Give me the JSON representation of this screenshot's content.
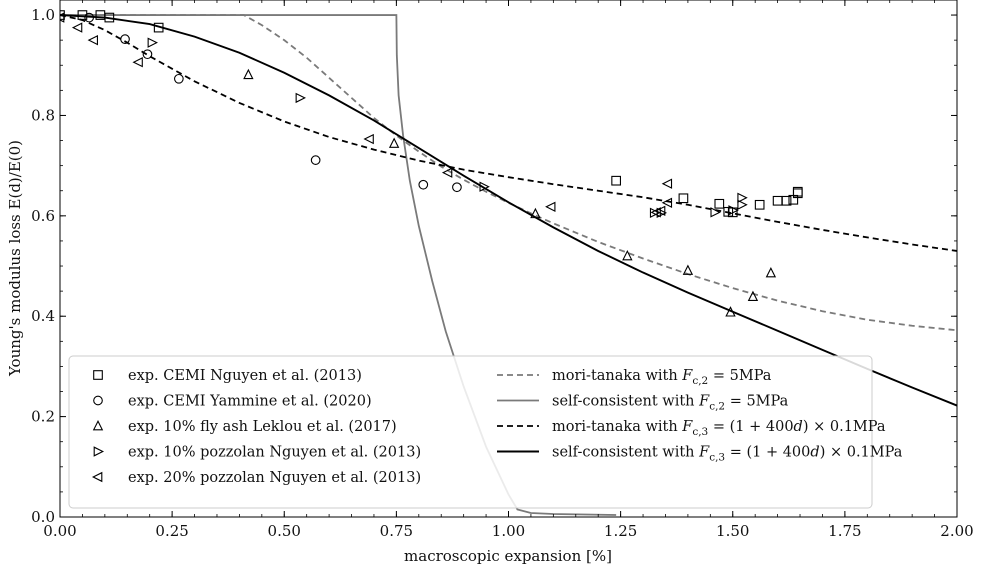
{
  "chart_data": {
    "type": "scatter",
    "xlabel": "macroscopic expansion [%]",
    "ylabel": "Young's modulus loss E(d)/E(0)",
    "xlim": [
      0.0,
      2.0
    ],
    "ylim": [
      0.0,
      1.03
    ],
    "x_ticks": [
      "0.00",
      "0.25",
      "0.50",
      "0.75",
      "1.00",
      "1.25",
      "1.50",
      "1.75",
      "2.00"
    ],
    "x_tick_values": [
      0.0,
      0.25,
      0.5,
      0.75,
      1.0,
      1.25,
      1.5,
      1.75,
      2.0
    ],
    "y_ticks": [
      "0.0",
      "0.2",
      "0.4",
      "0.6",
      "0.8",
      "1.0"
    ],
    "y_tick_values": [
      0.0,
      0.2,
      0.4,
      0.6,
      0.8,
      1.0
    ],
    "grid": false,
    "legend_placement": "bottom",
    "series": [
      {
        "name": "exp. CEMI Nguyen et al. (2013)",
        "kind": "marker",
        "marker": "square",
        "color": "#000000",
        "points": [
          [
            0.0,
            1.0
          ],
          [
            0.05,
            1.0
          ],
          [
            0.09,
            1.0
          ],
          [
            0.11,
            0.995
          ],
          [
            0.22,
            0.975
          ],
          [
            1.24,
            0.67
          ],
          [
            1.39,
            0.635
          ],
          [
            1.47,
            0.624
          ],
          [
            1.49,
            0.608
          ],
          [
            1.5,
            0.607
          ],
          [
            1.56,
            0.622
          ],
          [
            1.6,
            0.63
          ],
          [
            1.62,
            0.63
          ],
          [
            1.635,
            0.632
          ],
          [
            1.645,
            0.645
          ],
          [
            1.645,
            0.648
          ]
        ]
      },
      {
        "name": "exp. CEMI Yammine et al. (2020)",
        "kind": "marker",
        "marker": "circle",
        "color": "#000000",
        "points": [
          [
            0.065,
            0.995
          ],
          [
            0.145,
            0.952
          ],
          [
            0.195,
            0.922
          ],
          [
            0.265,
            0.873
          ],
          [
            0.57,
            0.711
          ],
          [
            0.81,
            0.662
          ],
          [
            0.885,
            0.657
          ]
        ]
      },
      {
        "name": "exp. 10% fly ash Leklou et al. (2017)",
        "kind": "marker",
        "marker": "triangle-up",
        "color": "#000000",
        "points": [
          [
            0.42,
            0.881
          ],
          [
            0.745,
            0.744
          ],
          [
            1.06,
            0.604
          ],
          [
            1.265,
            0.52
          ],
          [
            1.4,
            0.491
          ],
          [
            1.495,
            0.408
          ],
          [
            1.545,
            0.439
          ],
          [
            1.585,
            0.486
          ]
        ]
      },
      {
        "name": "exp. 10% pozzolan Nguyen et al. (2013)",
        "kind": "marker",
        "marker": "triangle-right",
        "color": "#000000",
        "points": [
          [
            0.205,
            0.945
          ],
          [
            0.535,
            0.835
          ],
          [
            0.945,
            0.658
          ],
          [
            1.325,
            0.606
          ],
          [
            1.34,
            0.606
          ],
          [
            1.46,
            0.607
          ],
          [
            1.5,
            0.611
          ],
          [
            1.52,
            0.622
          ],
          [
            1.52,
            0.636
          ]
        ]
      },
      {
        "name": "exp. 20% pozzolan Nguyen et al. (2013)",
        "kind": "marker",
        "marker": "triangle-left",
        "color": "#000000",
        "points": [
          [
            0.0,
            0.995
          ],
          [
            0.04,
            0.975
          ],
          [
            0.075,
            0.95
          ],
          [
            0.175,
            0.906
          ],
          [
            0.69,
            0.753
          ],
          [
            0.865,
            0.686
          ],
          [
            1.095,
            0.618
          ],
          [
            1.33,
            0.607
          ],
          [
            1.34,
            0.61
          ],
          [
            1.355,
            0.626
          ],
          [
            1.355,
            0.664
          ]
        ]
      },
      {
        "name": "mori-tanaka with ",
        "name_math": "F",
        "name_sub": "c,2",
        "name_rest": " = 5MPa",
        "kind": "line",
        "dash": "6,4",
        "color": "#7a7a7a",
        "width": 1.8,
        "points": [
          [
            0.0,
            1.0
          ],
          [
            0.41,
            1.0
          ],
          [
            0.45,
            0.98
          ],
          [
            0.5,
            0.95
          ],
          [
            0.55,
            0.915
          ],
          [
            0.6,
            0.875
          ],
          [
            0.65,
            0.835
          ],
          [
            0.7,
            0.795
          ],
          [
            0.75,
            0.76
          ],
          [
            0.8,
            0.728
          ],
          [
            0.85,
            0.698
          ],
          [
            0.9,
            0.672
          ],
          [
            0.95,
            0.648
          ],
          [
            1.0,
            0.626
          ],
          [
            1.05,
            0.605
          ],
          [
            1.1,
            0.585
          ],
          [
            1.2,
            0.548
          ],
          [
            1.3,
            0.515
          ],
          [
            1.4,
            0.484
          ],
          [
            1.5,
            0.456
          ],
          [
            1.6,
            0.431
          ],
          [
            1.7,
            0.41
          ],
          [
            1.8,
            0.393
          ],
          [
            1.9,
            0.381
          ],
          [
            2.0,
            0.372
          ]
        ]
      },
      {
        "name": "self-consistent with ",
        "name_math": "F",
        "name_sub": "c,2",
        "name_rest": " = 5MPa",
        "kind": "line",
        "dash": "",
        "color": "#7a7a7a",
        "width": 1.8,
        "points": [
          [
            0.0,
            1.0
          ],
          [
            0.75,
            1.0
          ],
          [
            0.751,
            0.92
          ],
          [
            0.755,
            0.84
          ],
          [
            0.765,
            0.76
          ],
          [
            0.78,
            0.67
          ],
          [
            0.8,
            0.58
          ],
          [
            0.83,
            0.47
          ],
          [
            0.86,
            0.37
          ],
          [
            0.9,
            0.26
          ],
          [
            0.95,
            0.14
          ],
          [
            1.0,
            0.045
          ],
          [
            1.02,
            0.015
          ],
          [
            1.05,
            0.008
          ],
          [
            1.1,
            0.006
          ],
          [
            1.24,
            0.004
          ]
        ]
      },
      {
        "name": "mori-tanaka with ",
        "name_math": "F",
        "name_sub": "c,3",
        "name_rest": " = (1 + 400",
        "name_math2": "d",
        "name_rest2": ") × 0.1MPa",
        "kind": "line",
        "dash": "6,4",
        "color": "#000000",
        "width": 1.8,
        "points": [
          [
            0.0,
            1.0
          ],
          [
            0.05,
            0.99
          ],
          [
            0.1,
            0.97
          ],
          [
            0.15,
            0.945
          ],
          [
            0.2,
            0.918
          ],
          [
            0.3,
            0.868
          ],
          [
            0.4,
            0.825
          ],
          [
            0.5,
            0.788
          ],
          [
            0.6,
            0.757
          ],
          [
            0.7,
            0.732
          ],
          [
            0.8,
            0.71
          ],
          [
            0.9,
            0.692
          ],
          [
            1.0,
            0.677
          ],
          [
            1.1,
            0.663
          ],
          [
            1.2,
            0.65
          ],
          [
            1.3,
            0.637
          ],
          [
            1.4,
            0.622
          ],
          [
            1.5,
            0.605
          ],
          [
            1.6,
            0.588
          ],
          [
            1.7,
            0.572
          ],
          [
            1.8,
            0.557
          ],
          [
            1.9,
            0.543
          ],
          [
            2.0,
            0.53
          ]
        ]
      },
      {
        "name": "self-consistent with ",
        "name_math": "F",
        "name_sub": "c,3",
        "name_rest": " = (1 + 400",
        "name_math2": "d",
        "name_rest2": ") × 0.1MPa",
        "kind": "line",
        "dash": "",
        "color": "#000000",
        "width": 1.9,
        "points": [
          [
            0.0,
            1.0
          ],
          [
            0.1,
            0.995
          ],
          [
            0.2,
            0.982
          ],
          [
            0.3,
            0.957
          ],
          [
            0.4,
            0.925
          ],
          [
            0.5,
            0.885
          ],
          [
            0.6,
            0.84
          ],
          [
            0.7,
            0.79
          ],
          [
            0.8,
            0.735
          ],
          [
            0.9,
            0.68
          ],
          [
            1.0,
            0.627
          ],
          [
            1.1,
            0.577
          ],
          [
            1.2,
            0.53
          ],
          [
            1.3,
            0.487
          ],
          [
            1.4,
            0.447
          ],
          [
            1.5,
            0.409
          ],
          [
            1.6,
            0.371
          ],
          [
            1.7,
            0.333
          ],
          [
            1.8,
            0.295
          ],
          [
            1.9,
            0.258
          ],
          [
            2.0,
            0.222
          ]
        ]
      }
    ]
  }
}
